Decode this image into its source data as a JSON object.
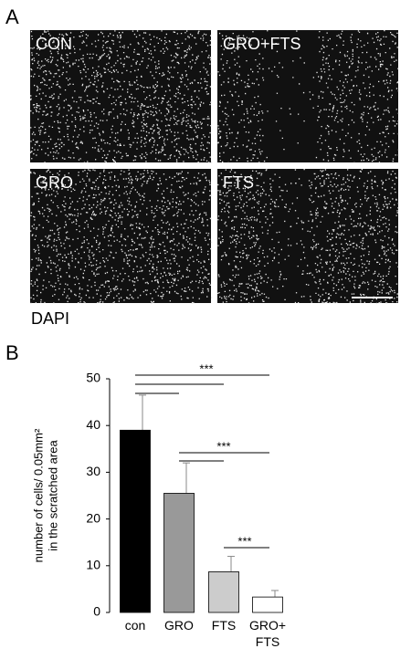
{
  "panel_a": {
    "label": "A",
    "images": [
      "CON",
      "GRO+FTS",
      "GRO",
      "FTS"
    ],
    "stain": "DAPI"
  },
  "panel_b": {
    "label": "B"
  },
  "chart_data": {
    "type": "bar",
    "y_label": [
      "number of cells/ 0.05mm²",
      "in the scratched area"
    ],
    "categories": [
      "con",
      "GRO",
      "FTS",
      "GRO+\nFTS"
    ],
    "values": [
      39,
      25.5,
      8.7,
      3.3
    ],
    "errors": [
      7.5,
      6.5,
      3.3,
      1.4
    ],
    "colors": [
      "#000000",
      "#999999",
      "#cccccc",
      "#ffffff"
    ],
    "ylim": [
      0,
      50
    ],
    "yticks": [
      0,
      10,
      20,
      30,
      40,
      50
    ],
    "annotations": [
      "***",
      "***",
      "***"
    ]
  }
}
